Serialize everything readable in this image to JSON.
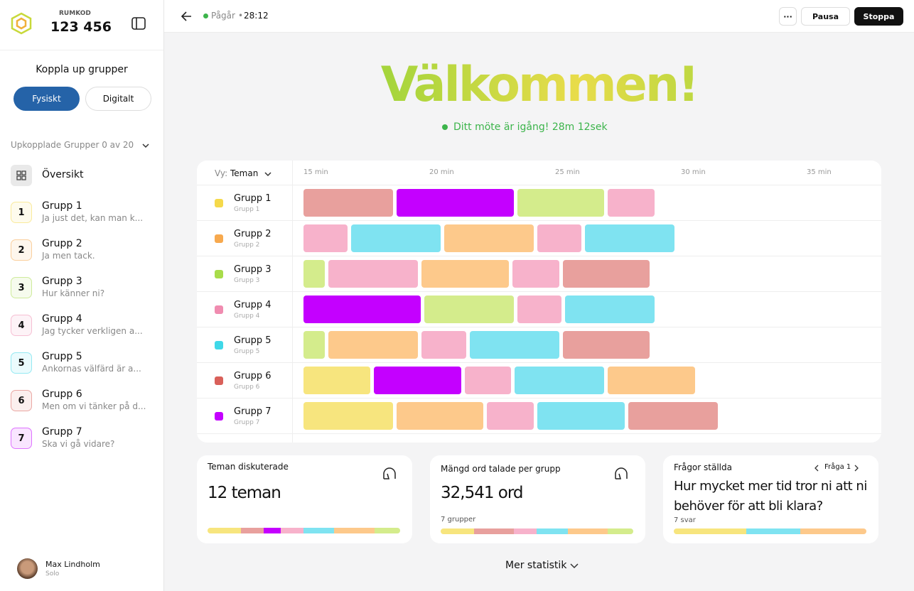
{
  "room": {
    "label": "RUMKOD",
    "code": "123 456"
  },
  "connect": {
    "title": "Koppla up grupper",
    "options": [
      "Fysiskt",
      "Digitalt"
    ]
  },
  "connected": "Upkopplade Grupper 0 av 20",
  "overview": "Översikt",
  "groups": [
    {
      "number": "1",
      "name": "Grupp 1",
      "message": "Ja just det, kan man k...",
      "color": "#f5d94a"
    },
    {
      "number": "2",
      "name": "Grupp 2",
      "message": "Ja men tack.",
      "color": "#f7a94e"
    },
    {
      "number": "3",
      "name": "Grupp 3",
      "message": "Hur känner ni?",
      "color": "#a8dc4a"
    },
    {
      "number": "4",
      "name": "Grupp 4",
      "message": "Jag tycker verkligen a...",
      "color": "#f08cb0"
    },
    {
      "number": "5",
      "name": "Grupp 5",
      "message": "Ankornas välfärd är a...",
      "color": "#3fd8e8"
    },
    {
      "number": "6",
      "name": "Grupp 6",
      "message": "Men om vi tänker på d...",
      "color": "#d9605a"
    },
    {
      "number": "7",
      "name": "Grupp 7",
      "message": "Ska vi gå vidare?",
      "color": "#c400ff"
    }
  ],
  "user": {
    "name": "Max Lindholm",
    "role": "Solo"
  },
  "topbar": {
    "status": "Pågår",
    "time": "28:12",
    "menu": "···",
    "pause": "Pausa",
    "stop": "Stoppa"
  },
  "welcome": {
    "title": "Välkommen!",
    "status": "Ditt möte är igång! 28m 12sek"
  },
  "timeline": {
    "view_label": "Vy:",
    "view": "Teman",
    "ticks": [
      {
        "value": 15,
        "label": "15 min"
      },
      {
        "value": 20,
        "label": "20 min"
      },
      {
        "value": 25,
        "label": "25 min"
      },
      {
        "value": 30,
        "label": "30 min"
      },
      {
        "value": 35,
        "label": "35 min"
      }
    ],
    "rows": [
      {
        "name": "Grupp 1",
        "sub": "Grupp 1",
        "color": "#f5d94a",
        "bounds": [
          15,
          18.7,
          23.5,
          27.1,
          29.1
        ],
        "colors": [
          "#e8a09d",
          "#c400ff",
          "#d4ec8c",
          "#f7b2cb"
        ]
      },
      {
        "name": "Grupp 2",
        "sub": "Grupp 2",
        "color": "#f7a94e",
        "bounds": [
          15,
          16.9,
          20.6,
          24.3,
          26.2,
          29.9
        ],
        "colors": [
          "#f7b2cb",
          "#7fe3f1",
          "#fdc98b",
          "#f7b2cb",
          "#7fe3f1"
        ]
      },
      {
        "name": "Grupp 3",
        "sub": "Grupp 3",
        "color": "#a8dc4a",
        "bounds": [
          15,
          16,
          19.7,
          23.3,
          25.3,
          28.9
        ],
        "colors": [
          "#d4ec8c",
          "#f7b2cb",
          "#fdc98b",
          "#f7b2cb",
          "#e8a09d"
        ]
      },
      {
        "name": "Grupp 4",
        "sub": "Grupp 4",
        "color": "#f08cb0",
        "bounds": [
          15,
          19.8,
          23.5,
          25.4,
          29.1
        ],
        "colors": [
          "#c400ff",
          "#d4ec8c",
          "#f7b2cb",
          "#7fe3f1"
        ]
      },
      {
        "name": "Grupp 5",
        "sub": "Grupp 5",
        "color": "#3fd8e8",
        "bounds": [
          15,
          16,
          19.7,
          21.6,
          25.3,
          28.9
        ],
        "colors": [
          "#d4ec8c",
          "#fdc98b",
          "#f7b2cb",
          "#7fe3f1",
          "#e8a09d"
        ]
      },
      {
        "name": "Grupp 6",
        "sub": "Grupp 6",
        "color": "#d9605a",
        "bounds": [
          15,
          17.8,
          21.4,
          23.4,
          27.1,
          30.7
        ],
        "colors": [
          "#f7e57e",
          "#c400ff",
          "#f7b2cb",
          "#7fe3f1",
          "#fdc98b"
        ]
      },
      {
        "name": "Grupp 7",
        "sub": "Grupp 7",
        "color": "#c400ff",
        "bounds": [
          15,
          18.7,
          22.3,
          24.3,
          27.9,
          31.6
        ],
        "colors": [
          "#f7e57e",
          "#fdc98b",
          "#f7b2cb",
          "#7fe3f1",
          "#e8a09d"
        ]
      }
    ]
  },
  "stats": [
    {
      "title": "Teman diskuterade",
      "value": "12 teman"
    },
    {
      "title": "Mängd ord talade per grupp",
      "value": "32,541 ord",
      "note": "7 grupper"
    },
    {
      "title": "Frågor ställda",
      "nav": "Fråga 1",
      "question": "Hur mycket mer tid tror ni att ni behöver för att bli klara?",
      "note": "7 svar"
    }
  ],
  "more": "Mer statistik"
}
